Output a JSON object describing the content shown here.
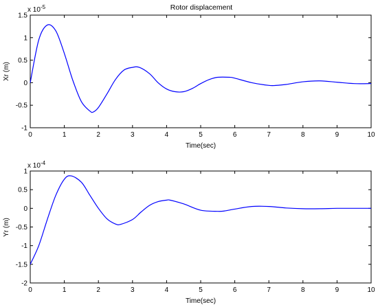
{
  "figure_title": "Rotor displacement",
  "chart_data": [
    {
      "type": "line",
      "title": "Rotor displacement",
      "xlabel": "Time(sec)",
      "ylabel": "Xr (m)",
      "y_multiplier_base": "x 10",
      "y_multiplier_exp": "-5",
      "xlim": [
        0,
        10
      ],
      "ylim": [
        -1,
        1.5
      ],
      "xticks": [
        "0",
        "1",
        "2",
        "3",
        "4",
        "5",
        "6",
        "7",
        "8",
        "9",
        "10"
      ],
      "yticks": [
        "-1",
        "-0.5",
        "0",
        "0.5",
        "1",
        "1.5"
      ],
      "grid": false,
      "color": "#0000ff",
      "series": [
        {
          "x": [
            0,
            0.25,
            0.5,
            0.75,
            1.0,
            1.25,
            1.5,
            1.75,
            1.85,
            2.0,
            2.25,
            2.5,
            2.75,
            3.0,
            3.2,
            3.5,
            3.75,
            4.0,
            4.25,
            4.5,
            4.75,
            5.0,
            5.25,
            5.5,
            5.85,
            6.0,
            6.5,
            7.0,
            7.2,
            7.5,
            8.0,
            8.5,
            9.0,
            9.5,
            10.0
          ],
          "y": [
            0.0,
            0.95,
            1.28,
            1.15,
            0.65,
            0.05,
            -0.42,
            -0.63,
            -0.65,
            -0.55,
            -0.25,
            0.07,
            0.28,
            0.34,
            0.34,
            0.2,
            0.0,
            -0.14,
            -0.2,
            -0.2,
            -0.13,
            -0.02,
            0.07,
            0.12,
            0.12,
            0.1,
            0.0,
            -0.06,
            -0.06,
            -0.04,
            0.02,
            0.04,
            0.01,
            -0.02,
            -0.02
          ]
        }
      ]
    },
    {
      "type": "line",
      "title": "",
      "xlabel": "Time(sec)",
      "ylabel": "Yr (m)",
      "y_multiplier_base": "x 10",
      "y_multiplier_exp": "-4",
      "xlim": [
        0,
        10
      ],
      "ylim": [
        -2,
        1
      ],
      "xticks": [
        "0",
        "1",
        "2",
        "3",
        "4",
        "5",
        "6",
        "7",
        "8",
        "9",
        "10"
      ],
      "yticks": [
        "-2",
        "-1.5",
        "-1",
        "-0.5",
        "0",
        "0.5",
        "1"
      ],
      "grid": false,
      "color": "#0000ff",
      "series": [
        {
          "x": [
            0,
            0.25,
            0.5,
            0.75,
            1.0,
            1.2,
            1.5,
            1.75,
            2.0,
            2.25,
            2.5,
            2.65,
            3.0,
            3.25,
            3.5,
            3.75,
            4.0,
            4.1,
            4.5,
            5.0,
            5.5,
            5.7,
            6.0,
            6.5,
            7.0,
            7.5,
            8.0,
            8.5,
            9.0,
            9.5,
            10.0
          ],
          "y": [
            -1.5,
            -1.0,
            -0.3,
            0.35,
            0.78,
            0.87,
            0.7,
            0.35,
            0.0,
            -0.28,
            -0.42,
            -0.43,
            -0.3,
            -0.1,
            0.08,
            0.18,
            0.22,
            0.22,
            0.12,
            -0.05,
            -0.08,
            -0.07,
            -0.02,
            0.05,
            0.05,
            0.01,
            -0.01,
            -0.01,
            0.0,
            0.0,
            0.0
          ]
        }
      ]
    }
  ]
}
